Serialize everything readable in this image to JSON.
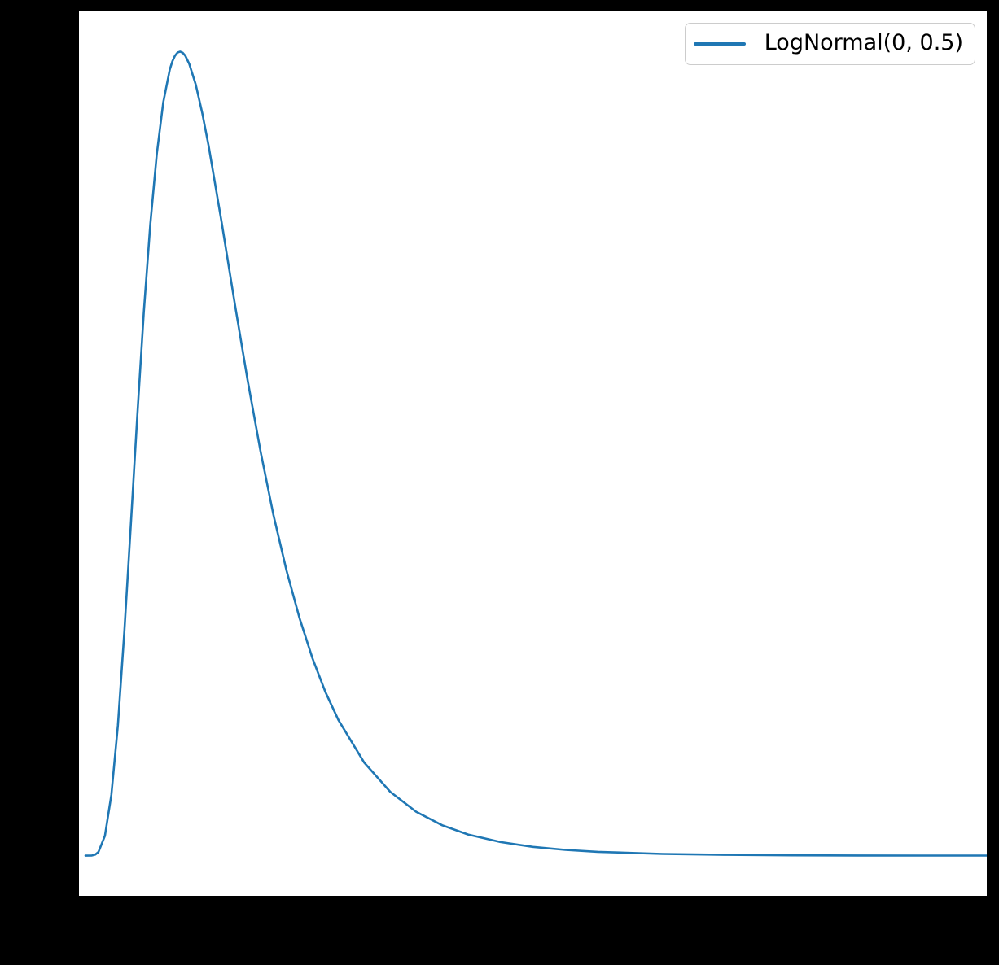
{
  "figure": {
    "background_color": "#000000",
    "axes_background_color": "#ffffff"
  },
  "legend": {
    "label": "LogNormal(0, 0.5)",
    "position": "upper-right",
    "border_color": "#cccccc",
    "background_color": "#ffffff"
  },
  "chart_data": {
    "type": "line",
    "title": "",
    "xlabel": "",
    "ylabel": "",
    "xlim": [
      0,
      7
    ],
    "ylim": [
      -0.0452,
      0.9493
    ],
    "grid": false,
    "tick_labels_visible": false,
    "legend_position": "upper right",
    "series": [
      {
        "name": "LogNormal(0, 0.5)",
        "color": "#1f77b4",
        "line_width": 2.6,
        "x": [
          0.05,
          0.1,
          0.125,
          0.15,
          0.2,
          0.25,
          0.3,
          0.35,
          0.4,
          0.45,
          0.5,
          0.55,
          0.6,
          0.65,
          0.7,
          0.72,
          0.74,
          0.76,
          0.78,
          0.8,
          0.82,
          0.85,
          0.9,
          0.95,
          1.0,
          1.1,
          1.2,
          1.3,
          1.4,
          1.5,
          1.6,
          1.7,
          1.8,
          1.9,
          2.0,
          2.2,
          2.4,
          2.6,
          2.8,
          3.0,
          3.25,
          3.5,
          3.75,
          4.0,
          4.5,
          5.0,
          5.5,
          6.0,
          6.5,
          7.0
        ],
        "y": [
          0.0,
          0.0002,
          0.0011,
          0.004,
          0.0224,
          0.0684,
          0.1465,
          0.2514,
          0.3722,
          0.4954,
          0.6105,
          0.7099,
          0.7891,
          0.8469,
          0.8838,
          0.8931,
          0.8994,
          0.903,
          0.9041,
          0.9028,
          0.8994,
          0.8904,
          0.8671,
          0.8355,
          0.7979,
          0.7123,
          0.6221,
          0.5348,
          0.4546,
          0.3829,
          0.3206,
          0.2673,
          0.2221,
          0.1842,
          0.1526,
          0.1046,
          0.0718,
          0.0494,
          0.0342,
          0.0238,
          0.0153,
          0.0099,
          0.0065,
          0.0043,
          0.0019,
          0.0009,
          0.0004,
          0.0002,
          0.0001,
          0.0001
        ]
      }
    ]
  }
}
